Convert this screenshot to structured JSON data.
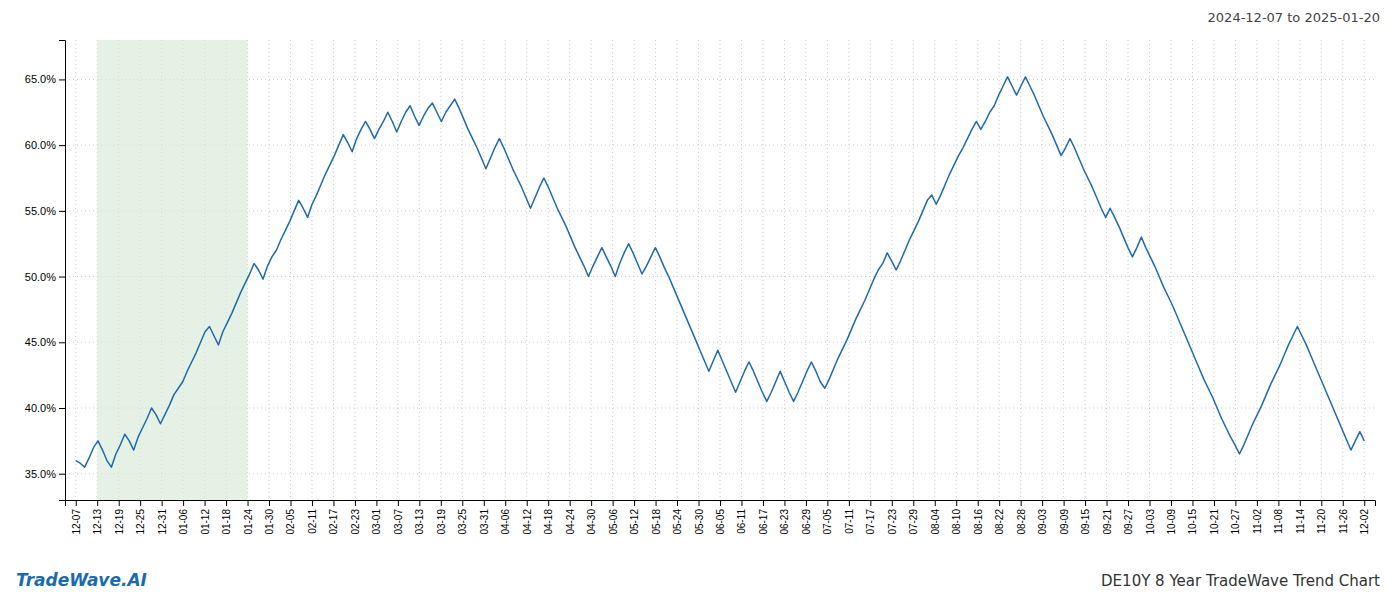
{
  "chart_data": {
    "type": "line",
    "title": "DE10Y 8 Year TradeWave Trend Chart",
    "subtitle": "2024-12-07 to 2025-01-20",
    "annotations": [
      "TradeWave.AI"
    ],
    "color": "#1f6aad",
    "grid": true,
    "xlim": [
      -0.5,
      60.5
    ],
    "xticks": [
      {
        "value": 0,
        "label": "12-07"
      },
      {
        "value": 1,
        "label": "12-13"
      },
      {
        "value": 2,
        "label": "12-19"
      },
      {
        "value": 3,
        "label": "12-25"
      },
      {
        "value": 4,
        "label": "12-31"
      },
      {
        "value": 5,
        "label": "01-06"
      },
      {
        "value": 6,
        "label": "01-12"
      },
      {
        "value": 7,
        "label": "01-18"
      },
      {
        "value": 8,
        "label": "01-24"
      },
      {
        "value": 9,
        "label": "01-30"
      },
      {
        "value": 10,
        "label": "02-05"
      },
      {
        "value": 11,
        "label": "02-11"
      },
      {
        "value": 12,
        "label": "02-17"
      },
      {
        "value": 13,
        "label": "02-23"
      },
      {
        "value": 14,
        "label": "03-01"
      },
      {
        "value": 15,
        "label": "03-07"
      },
      {
        "value": 16,
        "label": "03-13"
      },
      {
        "value": 17,
        "label": "03-19"
      },
      {
        "value": 18,
        "label": "03-25"
      },
      {
        "value": 19,
        "label": "03-31"
      },
      {
        "value": 20,
        "label": "04-06"
      },
      {
        "value": 21,
        "label": "04-12"
      },
      {
        "value": 22,
        "label": "04-18"
      },
      {
        "value": 23,
        "label": "04-24"
      },
      {
        "value": 24,
        "label": "04-30"
      },
      {
        "value": 25,
        "label": "05-06"
      },
      {
        "value": 26,
        "label": "05-12"
      },
      {
        "value": 27,
        "label": "05-18"
      },
      {
        "value": 28,
        "label": "05-24"
      },
      {
        "value": 29,
        "label": "05-30"
      },
      {
        "value": 30,
        "label": "06-05"
      },
      {
        "value": 31,
        "label": "06-11"
      },
      {
        "value": 32,
        "label": "06-17"
      },
      {
        "value": 33,
        "label": "06-23"
      },
      {
        "value": 34,
        "label": "06-29"
      },
      {
        "value": 35,
        "label": "07-05"
      },
      {
        "value": 36,
        "label": "07-11"
      },
      {
        "value": 37,
        "label": "07-17"
      },
      {
        "value": 38,
        "label": "07-23"
      },
      {
        "value": 39,
        "label": "07-29"
      },
      {
        "value": 40,
        "label": "08-04"
      },
      {
        "value": 41,
        "label": "08-10"
      },
      {
        "value": 42,
        "label": "08-16"
      },
      {
        "value": 43,
        "label": "08-22"
      },
      {
        "value": 44,
        "label": "08-28"
      },
      {
        "value": 45,
        "label": "09-03"
      },
      {
        "value": 46,
        "label": "09-09"
      },
      {
        "value": 47,
        "label": "09-15"
      },
      {
        "value": 48,
        "label": "09-21"
      },
      {
        "value": 49,
        "label": "09-27"
      },
      {
        "value": 50,
        "label": "10-03"
      },
      {
        "value": 51,
        "label": "10-09"
      },
      {
        "value": 52,
        "label": "10-15"
      },
      {
        "value": 53,
        "label": "10-21"
      },
      {
        "value": 54,
        "label": "10-27"
      },
      {
        "value": 55,
        "label": "11-02"
      },
      {
        "value": 56,
        "label": "11-08"
      },
      {
        "value": 57,
        "label": "11-14"
      },
      {
        "value": 58,
        "label": "11-20"
      },
      {
        "value": 59,
        "label": "11-26"
      },
      {
        "value": 60,
        "label": "12-02"
      }
    ],
    "ylim": [
      0.33,
      0.68
    ],
    "yticks": [
      {
        "value": 0.35,
        "label": "35.0%"
      },
      {
        "value": 0.4,
        "label": "40.0%"
      },
      {
        "value": 0.45,
        "label": "45.0%"
      },
      {
        "value": 0.5,
        "label": "50.0%"
      },
      {
        "value": 0.55,
        "label": "55.0%"
      },
      {
        "value": 0.6,
        "label": "60.0%"
      },
      {
        "value": 0.65,
        "label": "65.0%"
      }
    ],
    "shade": {
      "from": 1,
      "to": 8,
      "color": "#d8ead8"
    },
    "values": [
      0.36,
      0.358,
      0.355,
      0.362,
      0.37,
      0.375,
      0.368,
      0.36,
      0.355,
      0.365,
      0.372,
      0.38,
      0.375,
      0.368,
      0.378,
      0.385,
      0.392,
      0.4,
      0.395,
      0.388,
      0.395,
      0.402,
      0.41,
      0.415,
      0.42,
      0.428,
      0.435,
      0.442,
      0.45,
      0.458,
      0.462,
      0.455,
      0.448,
      0.458,
      0.465,
      0.472,
      0.48,
      0.488,
      0.495,
      0.502,
      0.51,
      0.505,
      0.498,
      0.508,
      0.515,
      0.52,
      0.528,
      0.535,
      0.542,
      0.55,
      0.558,
      0.552,
      0.545,
      0.555,
      0.562,
      0.57,
      0.578,
      0.585,
      0.592,
      0.6,
      0.608,
      0.602,
      0.595,
      0.605,
      0.612,
      0.618,
      0.612,
      0.605,
      0.612,
      0.618,
      0.625,
      0.618,
      0.61,
      0.618,
      0.625,
      0.63,
      0.622,
      0.615,
      0.622,
      0.628,
      0.632,
      0.625,
      0.618,
      0.625,
      0.63,
      0.635,
      0.628,
      0.62,
      0.612,
      0.605,
      0.598,
      0.59,
      0.582,
      0.59,
      0.598,
      0.605,
      0.598,
      0.59,
      0.582,
      0.575,
      0.568,
      0.56,
      0.552,
      0.56,
      0.568,
      0.575,
      0.568,
      0.56,
      0.552,
      0.545,
      0.538,
      0.53,
      0.522,
      0.515,
      0.508,
      0.5,
      0.508,
      0.515,
      0.522,
      0.515,
      0.508,
      0.5,
      0.51,
      0.518,
      0.525,
      0.518,
      0.51,
      0.502,
      0.508,
      0.515,
      0.522,
      0.515,
      0.507,
      0.5,
      0.492,
      0.484,
      0.476,
      0.468,
      0.46,
      0.452,
      0.444,
      0.436,
      0.428,
      0.436,
      0.444,
      0.436,
      0.428,
      0.42,
      0.412,
      0.42,
      0.428,
      0.435,
      0.428,
      0.42,
      0.412,
      0.405,
      0.412,
      0.42,
      0.428,
      0.42,
      0.412,
      0.405,
      0.412,
      0.42,
      0.428,
      0.435,
      0.428,
      0.42,
      0.415,
      0.422,
      0.43,
      0.438,
      0.445,
      0.452,
      0.46,
      0.468,
      0.475,
      0.482,
      0.49,
      0.498,
      0.505,
      0.51,
      0.518,
      0.512,
      0.505,
      0.512,
      0.52,
      0.528,
      0.535,
      0.542,
      0.55,
      0.558,
      0.562,
      0.555,
      0.562,
      0.57,
      0.578,
      0.585,
      0.592,
      0.598,
      0.605,
      0.612,
      0.618,
      0.612,
      0.618,
      0.625,
      0.63,
      0.638,
      0.645,
      0.652,
      0.645,
      0.638,
      0.645,
      0.652,
      0.645,
      0.638,
      0.63,
      0.622,
      0.615,
      0.608,
      0.6,
      0.592,
      0.598,
      0.605,
      0.598,
      0.59,
      0.582,
      0.575,
      0.568,
      0.56,
      0.552,
      0.545,
      0.552,
      0.545,
      0.538,
      0.53,
      0.522,
      0.515,
      0.522,
      0.53,
      0.522,
      0.515,
      0.508,
      0.5,
      0.492,
      0.485,
      0.478,
      0.47,
      0.462,
      0.454,
      0.446,
      0.438,
      0.43,
      0.422,
      0.415,
      0.408,
      0.4,
      0.392,
      0.385,
      0.378,
      0.372,
      0.365,
      0.372,
      0.38,
      0.388,
      0.395,
      0.402,
      0.41,
      0.418,
      0.425,
      0.432,
      0.44,
      0.448,
      0.455,
      0.462,
      0.455,
      0.448,
      0.44,
      0.432,
      0.424,
      0.416,
      0.408,
      0.4,
      0.392,
      0.384,
      0.376,
      0.368,
      0.375,
      0.382,
      0.375
    ]
  }
}
